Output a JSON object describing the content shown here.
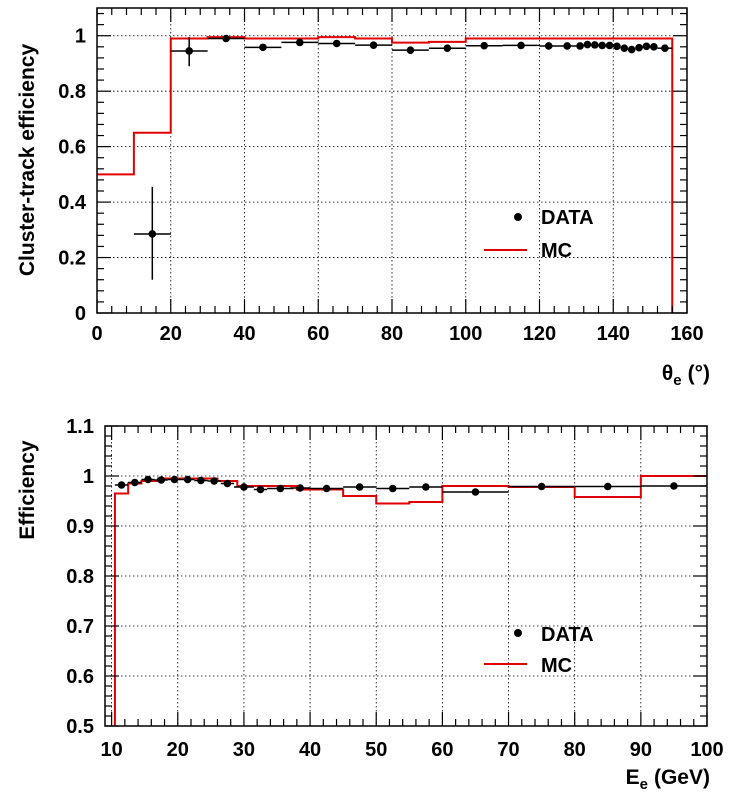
{
  "colors": {
    "data": "#000000",
    "mc": "#e00000",
    "grid": "#000000"
  },
  "chart_data": [
    {
      "type": "scatter",
      "xlabel_main": "θ",
      "xlabel_sub": "e",
      "xlabel_unit": "(°)",
      "ylabel": "Cluster-track efficiency",
      "xlim": [
        0,
        160
      ],
      "ylim": [
        0,
        1.1
      ],
      "xticks": [
        0,
        20,
        40,
        60,
        80,
        100,
        120,
        140,
        160
      ],
      "xtick_labels": [
        "0",
        "20",
        "40",
        "60",
        "80",
        "100",
        "120",
        "140",
        "160"
      ],
      "yticks": [
        0,
        0.2,
        0.4,
        0.6,
        0.8,
        1
      ],
      "ytick_labels": [
        "0",
        "0.2",
        "0.4",
        "0.6",
        "0.8",
        "1"
      ],
      "grid": true,
      "legend": {
        "placement": "center-right",
        "entries": [
          "DATA",
          "MC"
        ]
      },
      "series": [
        {
          "name": "DATA",
          "style": "points-with-errors",
          "points": [
            {
              "x": 15,
              "xerr": 5,
              "y": 0.285,
              "ylo": 0.12,
              "yhi": 0.455
            },
            {
              "x": 25,
              "xerr": 5,
              "y": 0.945,
              "ylo": 0.89,
              "yhi": 0.995
            },
            {
              "x": 35,
              "xerr": 5,
              "y": 0.99,
              "ylo": 0.983,
              "yhi": 0.997
            },
            {
              "x": 45,
              "xerr": 5,
              "y": 0.958,
              "ylo": 0.95,
              "yhi": 0.966
            },
            {
              "x": 55,
              "xerr": 5,
              "y": 0.976,
              "ylo": 0.97,
              "yhi": 0.982
            },
            {
              "x": 65,
              "xerr": 5,
              "y": 0.972,
              "ylo": 0.966,
              "yhi": 0.978
            },
            {
              "x": 75,
              "xerr": 5,
              "y": 0.966,
              "ylo": 0.96,
              "yhi": 0.972
            },
            {
              "x": 85,
              "xerr": 5,
              "y": 0.948,
              "ylo": 0.942,
              "yhi": 0.954
            },
            {
              "x": 95,
              "xerr": 5,
              "y": 0.955,
              "ylo": 0.949,
              "yhi": 0.961
            },
            {
              "x": 105,
              "xerr": 5,
              "y": 0.964,
              "ylo": 0.958,
              "yhi": 0.97
            },
            {
              "x": 115,
              "xerr": 5,
              "y": 0.965,
              "ylo": 0.959,
              "yhi": 0.971
            },
            {
              "x": 122.5,
              "xerr": 2.5,
              "y": 0.963,
              "ylo": 0.957,
              "yhi": 0.969
            },
            {
              "x": 127.5,
              "xerr": 2.5,
              "y": 0.963,
              "ylo": 0.957,
              "yhi": 0.969
            },
            {
              "x": 131,
              "xerr": 1,
              "y": 0.963,
              "ylo": 0.957,
              "yhi": 0.969
            },
            {
              "x": 133,
              "xerr": 1,
              "y": 0.968,
              "ylo": 0.962,
              "yhi": 0.974
            },
            {
              "x": 135,
              "xerr": 1,
              "y": 0.967,
              "ylo": 0.961,
              "yhi": 0.973
            },
            {
              "x": 137,
              "xerr": 1,
              "y": 0.965,
              "ylo": 0.959,
              "yhi": 0.971
            },
            {
              "x": 139,
              "xerr": 1,
              "y": 0.965,
              "ylo": 0.959,
              "yhi": 0.971
            },
            {
              "x": 141,
              "xerr": 1,
              "y": 0.962,
              "ylo": 0.956,
              "yhi": 0.968
            },
            {
              "x": 143,
              "xerr": 1,
              "y": 0.955,
              "ylo": 0.949,
              "yhi": 0.961
            },
            {
              "x": 145,
              "xerr": 1,
              "y": 0.95,
              "ylo": 0.944,
              "yhi": 0.956
            },
            {
              "x": 147,
              "xerr": 1,
              "y": 0.957,
              "ylo": 0.951,
              "yhi": 0.963
            },
            {
              "x": 149,
              "xerr": 1,
              "y": 0.962,
              "ylo": 0.956,
              "yhi": 0.968
            },
            {
              "x": 151,
              "xerr": 1,
              "y": 0.96,
              "ylo": 0.954,
              "yhi": 0.966
            },
            {
              "x": 154,
              "xerr": 2,
              "y": 0.955,
              "ylo": 0.949,
              "yhi": 0.961
            }
          ]
        },
        {
          "name": "MC",
          "style": "step",
          "bins": [
            {
              "x0": 0,
              "x1": 10,
              "y": 0.5
            },
            {
              "x0": 10,
              "x1": 20,
              "y": 0.65
            },
            {
              "x0": 20,
              "x1": 30,
              "y": 0.99
            },
            {
              "x0": 30,
              "x1": 40,
              "y": 0.995
            },
            {
              "x0": 40,
              "x1": 50,
              "y": 0.99
            },
            {
              "x0": 50,
              "x1": 60,
              "y": 0.99
            },
            {
              "x0": 60,
              "x1": 70,
              "y": 0.995
            },
            {
              "x0": 70,
              "x1": 80,
              "y": 0.99
            },
            {
              "x0": 80,
              "x1": 90,
              "y": 0.975
            },
            {
              "x0": 90,
              "x1": 100,
              "y": 0.978
            },
            {
              "x0": 100,
              "x1": 110,
              "y": 0.99
            },
            {
              "x0": 110,
              "x1": 120,
              "y": 0.99
            },
            {
              "x0": 120,
              "x1": 130,
              "y": 0.99
            },
            {
              "x0": 130,
              "x1": 140,
              "y": 0.99
            },
            {
              "x0": 140,
              "x1": 150,
              "y": 0.99
            },
            {
              "x0": 150,
              "x1": 156,
              "y": 0.99
            }
          ],
          "drop_to": 0
        }
      ]
    },
    {
      "type": "scatter",
      "xlabel_main": "E",
      "xlabel_sub": "e",
      "xlabel_unit": "(GeV)",
      "ylabel": "Efficiency",
      "xlim": [
        9,
        100
      ],
      "ylim": [
        0.5,
        1.1
      ],
      "xticks": [
        10,
        20,
        30,
        40,
        50,
        60,
        70,
        80,
        90,
        100
      ],
      "xtick_labels": [
        "10",
        "20",
        "30",
        "40",
        "50",
        "60",
        "70",
        "80",
        "90",
        "100"
      ],
      "yticks": [
        0.5,
        0.6,
        0.7,
        0.8,
        0.9,
        1,
        1.1
      ],
      "ytick_labels": [
        "0.5",
        "0.6",
        "0.7",
        "0.8",
        "0.9",
        "1",
        "1.1"
      ],
      "grid": true,
      "legend": {
        "placement": "center-right",
        "entries": [
          "DATA",
          "MC"
        ]
      },
      "series": [
        {
          "name": "DATA",
          "style": "points-with-errors",
          "points": [
            {
              "x": 11.5,
              "xerr": 1,
              "y": 0.982
            },
            {
              "x": 13.5,
              "xerr": 1,
              "y": 0.987
            },
            {
              "x": 15.5,
              "xerr": 1,
              "y": 0.993
            },
            {
              "x": 17.5,
              "xerr": 1,
              "y": 0.992
            },
            {
              "x": 19.5,
              "xerr": 1,
              "y": 0.993
            },
            {
              "x": 21.5,
              "xerr": 1,
              "y": 0.993
            },
            {
              "x": 23.5,
              "xerr": 1,
              "y": 0.991
            },
            {
              "x": 25.5,
              "xerr": 1,
              "y": 0.99
            },
            {
              "x": 27.5,
              "xerr": 1,
              "y": 0.985
            },
            {
              "x": 30,
              "xerr": 1.5,
              "y": 0.978
            },
            {
              "x": 32.5,
              "xerr": 1,
              "y": 0.973
            },
            {
              "x": 35.5,
              "xerr": 2,
              "y": 0.975
            },
            {
              "x": 38.5,
              "xerr": 1.5,
              "y": 0.976
            },
            {
              "x": 42.5,
              "xerr": 2.5,
              "y": 0.975
            },
            {
              "x": 47.5,
              "xerr": 2.5,
              "y": 0.978
            },
            {
              "x": 52.5,
              "xerr": 2.5,
              "y": 0.975
            },
            {
              "x": 57.5,
              "xerr": 2.5,
              "y": 0.978
            },
            {
              "x": 65,
              "xerr": 5,
              "y": 0.968
            },
            {
              "x": 75,
              "xerr": 5,
              "y": 0.979
            },
            {
              "x": 85,
              "xerr": 5,
              "y": 0.979
            },
            {
              "x": 95,
              "xerr": 5,
              "y": 0.98
            }
          ]
        },
        {
          "name": "MC",
          "style": "step",
          "start_from": 0.5,
          "bins": [
            {
              "x0": 10.5,
              "x1": 12.5,
              "y": 0.965
            },
            {
              "x0": 12.5,
              "x1": 14.5,
              "y": 0.985
            },
            {
              "x0": 14.5,
              "x1": 17,
              "y": 0.99
            },
            {
              "x0": 17,
              "x1": 26,
              "y": 0.995
            },
            {
              "x0": 26,
              "x1": 29,
              "y": 0.99
            },
            {
              "x0": 29,
              "x1": 38,
              "y": 0.98
            },
            {
              "x0": 38,
              "x1": 45,
              "y": 0.973
            },
            {
              "x0": 45,
              "x1": 50,
              "y": 0.96
            },
            {
              "x0": 50,
              "x1": 55,
              "y": 0.945
            },
            {
              "x0": 55,
              "x1": 60,
              "y": 0.948
            },
            {
              "x0": 60,
              "x1": 70,
              "y": 0.98
            },
            {
              "x0": 70,
              "x1": 80,
              "y": 0.978
            },
            {
              "x0": 80,
              "x1": 90,
              "y": 0.958
            },
            {
              "x0": 90,
              "x1": 100,
              "y": 1.0
            }
          ]
        }
      ]
    }
  ]
}
